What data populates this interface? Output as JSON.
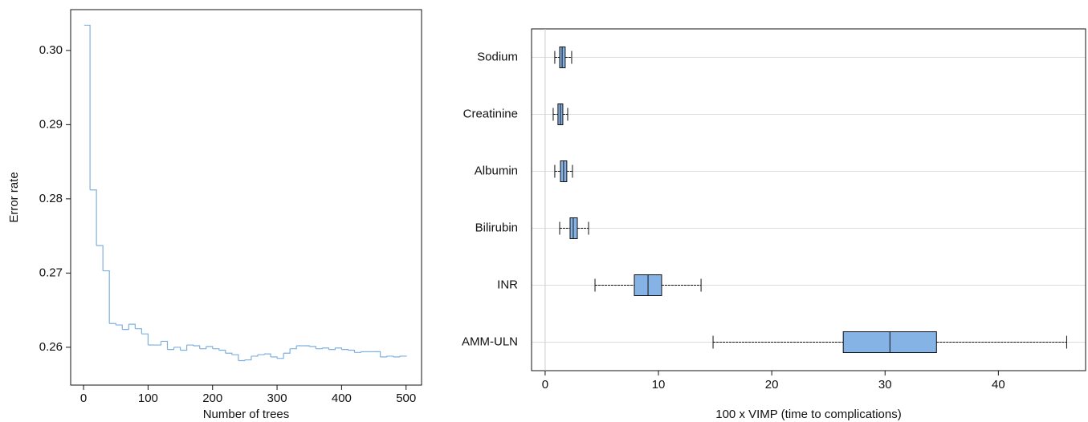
{
  "chart_data": [
    {
      "type": "step",
      "xlabel": "Number of trees",
      "ylabel": "Error rate",
      "color": "#7fb0e0",
      "x": [
        1,
        10,
        20,
        30,
        40,
        50,
        60,
        70,
        80,
        90,
        100,
        110,
        120,
        130,
        140,
        150,
        160,
        170,
        180,
        190,
        200,
        210,
        220,
        230,
        240,
        250,
        260,
        270,
        280,
        290,
        300,
        310,
        320,
        330,
        340,
        350,
        360,
        370,
        380,
        390,
        400,
        410,
        420,
        430,
        440,
        450,
        460,
        470,
        480,
        490,
        500
      ],
      "values": [
        0.3034,
        0.2812,
        0.2737,
        0.2703,
        0.2632,
        0.263,
        0.2624,
        0.2631,
        0.2625,
        0.2618,
        0.2603,
        0.2603,
        0.2608,
        0.2597,
        0.26,
        0.2596,
        0.2603,
        0.2602,
        0.2598,
        0.2601,
        0.2598,
        0.2596,
        0.2592,
        0.259,
        0.2582,
        0.2583,
        0.2588,
        0.259,
        0.2591,
        0.2587,
        0.2585,
        0.2592,
        0.2598,
        0.2602,
        0.2602,
        0.2601,
        0.2598,
        0.2599,
        0.2597,
        0.2599,
        0.2597,
        0.2596,
        0.2593,
        0.2594,
        0.2594,
        0.2594,
        0.2587,
        0.2588,
        0.2587,
        0.2588,
        0.2588
      ],
      "xlim": [
        -20,
        524
      ],
      "xticks": [
        0,
        100,
        200,
        300,
        400,
        500
      ],
      "ylim": [
        0.2549,
        0.3055
      ],
      "yticks": [
        0.26,
        0.27,
        0.28,
        0.29,
        {
          "value": 0.3,
          "label": "0.30"
        }
      ]
    },
    {
      "type": "box",
      "orientation": "horizontal",
      "xlabel": "100 x VIMP (time to complications)",
      "color": "#86b3e6",
      "grid": true,
      "categories": [
        "Sodium",
        "Creatinine",
        "Albumin",
        "Bilirubin",
        "INR",
        "AMM-ULN"
      ],
      "min": [
        0.85,
        0.71,
        0.85,
        1.28,
        4.4,
        14.82
      ],
      "q1": [
        1.28,
        1.13,
        1.35,
        2.2,
        7.87,
        26.31
      ],
      "median": [
        1.5,
        1.35,
        1.63,
        2.48,
        9.08,
        30.43
      ],
      "q3": [
        1.77,
        1.56,
        1.91,
        2.84,
        10.28,
        34.54
      ],
      "max": [
        2.34,
        1.99,
        2.41,
        3.83,
        13.76,
        46.03
      ],
      "xlim": [
        -1.2,
        47.7
      ],
      "xticks": [
        0,
        10,
        20,
        30,
        40
      ]
    }
  ]
}
